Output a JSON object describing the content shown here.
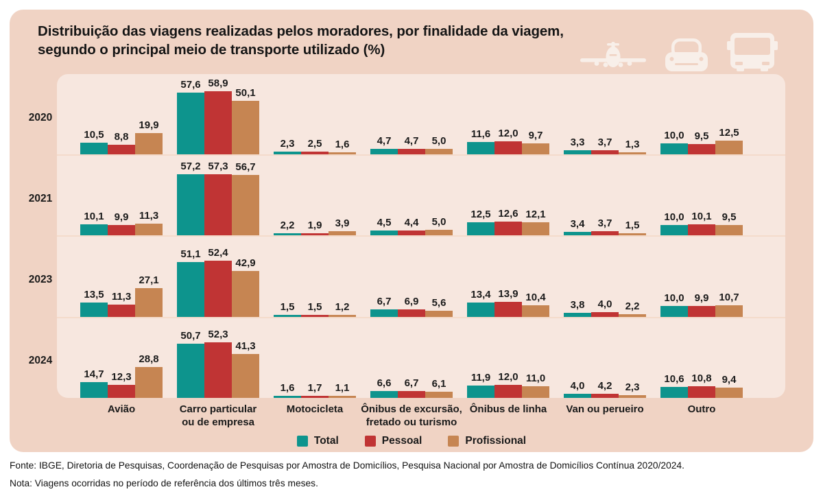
{
  "title": {
    "line1": "Distribuição das viagens realizadas pelos moradores, por finalidade da viagem,",
    "line2": "segundo o principal meio de transporte utilizado (%)"
  },
  "header_icons": [
    "airplane-icon",
    "car-icon",
    "bus-icon"
  ],
  "colors": {
    "card_bg": "#f0d3c4",
    "panel_bg": "#f7e7df",
    "icon": "#f8efe9",
    "series": [
      "#0d948d",
      "#c03434",
      "#c68552"
    ]
  },
  "legend": [
    {
      "label": "Total",
      "color": "#0d948d"
    },
    {
      "label": "Pessoal",
      "color": "#c03434"
    },
    {
      "label": "Profissional",
      "color": "#c68552"
    }
  ],
  "footer": {
    "fonte": "Fonte: IBGE, Diretoria de Pesquisas, Coordenação de Pesquisas por Amostra de Domicílios, Pesquisa Nacional por Amostra de Domicílios Contínua 2020/2024.",
    "nota": "Nota: Viagens ocorridas no período de referência dos últimos três meses."
  },
  "chart_data": {
    "type": "bar",
    "title": "Distribuição das viagens realizadas pelos moradores, por finalidade da viagem, segundo o principal meio de transporte utilizado (%)",
    "unit": "%",
    "ylim": [
      0,
      60
    ],
    "grid": false,
    "legend_position": "bottom",
    "series": [
      "Total",
      "Pessoal",
      "Profissional"
    ],
    "categories": [
      {
        "lines": [
          "Avião"
        ]
      },
      {
        "lines": [
          "Carro particular",
          "ou de empresa"
        ]
      },
      {
        "lines": [
          "Motocicleta"
        ]
      },
      {
        "lines": [
          "Ônibus de excursão,",
          "fretado ou turismo"
        ]
      },
      {
        "lines": [
          "Ônibus de linha"
        ]
      },
      {
        "lines": [
          "Van ou perueiro"
        ]
      },
      {
        "lines": [
          "Outro"
        ]
      }
    ],
    "rows": [
      {
        "year": "2020",
        "groups": [
          [
            10.5,
            8.8,
            19.9
          ],
          [
            57.6,
            58.9,
            50.1
          ],
          [
            2.3,
            2.5,
            1.6
          ],
          [
            4.7,
            4.7,
            5.0
          ],
          [
            11.6,
            12.0,
            9.7
          ],
          [
            3.3,
            3.7,
            1.3
          ],
          [
            10.0,
            9.5,
            12.5
          ]
        ]
      },
      {
        "year": "2021",
        "groups": [
          [
            10.1,
            9.9,
            11.3
          ],
          [
            57.2,
            57.3,
            56.7
          ],
          [
            2.2,
            1.9,
            3.9
          ],
          [
            4.5,
            4.4,
            5.0
          ],
          [
            12.5,
            12.6,
            12.1
          ],
          [
            3.4,
            3.7,
            1.5
          ],
          [
            10.0,
            10.1,
            9.5
          ]
        ]
      },
      {
        "year": "2023",
        "groups": [
          [
            13.5,
            11.3,
            27.1
          ],
          [
            51.1,
            52.4,
            42.9
          ],
          [
            1.5,
            1.5,
            1.2
          ],
          [
            6.7,
            6.9,
            5.6
          ],
          [
            13.4,
            13.9,
            10.4
          ],
          [
            3.8,
            4.0,
            2.2
          ],
          [
            10.0,
            9.9,
            10.7
          ]
        ]
      },
      {
        "year": "2024",
        "groups": [
          [
            14.7,
            12.3,
            28.8
          ],
          [
            50.7,
            52.3,
            41.3
          ],
          [
            1.6,
            1.7,
            1.1
          ],
          [
            6.6,
            6.7,
            6.1
          ],
          [
            11.9,
            12.0,
            11.0
          ],
          [
            4.0,
            4.2,
            2.3
          ],
          [
            10.6,
            10.8,
            9.4
          ]
        ]
      }
    ]
  }
}
